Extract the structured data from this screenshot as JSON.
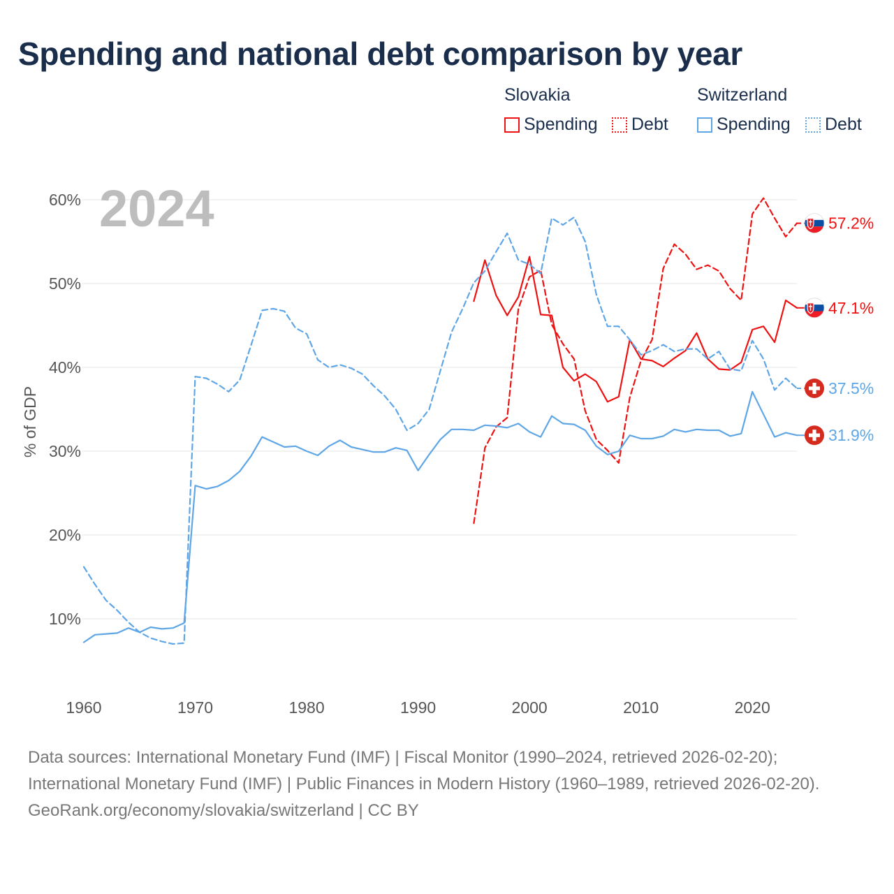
{
  "title": "Spending and national debt comparison by year",
  "legend": {
    "slovakia": {
      "name": "Slovakia",
      "spending": "Spending",
      "debt": "Debt"
    },
    "switzerland": {
      "name": "Switzerland",
      "spending": "Spending",
      "debt": "Debt"
    }
  },
  "footer": {
    "sources": "Data sources: International Monetary Fund (IMF) | Fiscal Monitor (1990–2024, retrieved 2026-02-20); International Monetary Fund (IMF) | Public Finances in Modern History (1960–1989, retrieved 2026-02-20).",
    "attribution": "GeoRank.org/economy/slovakia/switzerland | CC BY"
  },
  "colors": {
    "slovakia": "#ee1111",
    "switzerland": "#5ea6e6"
  },
  "chart_data": {
    "type": "line",
    "title": "Spending and national debt comparison by year",
    "year_label": "2024",
    "xlabel": "",
    "ylabel": "% of GDP",
    "xlim": [
      1960,
      2024
    ],
    "ylim": [
      3,
      63
    ],
    "x_ticks": [
      1960,
      1970,
      1980,
      1990,
      2000,
      2010,
      2020
    ],
    "y_ticks": [
      10,
      20,
      30,
      40,
      50,
      60
    ],
    "y_tick_labels": [
      "10%",
      "20%",
      "30%",
      "40%",
      "50%",
      "60%"
    ],
    "series": [
      {
        "name": "Slovakia Spending",
        "country": "slovakia",
        "style": "solid",
        "color": "#ee1111",
        "start": 1995,
        "values": [
          47.9,
          52.8,
          48.6,
          46.2,
          48.4,
          53.2,
          46.3,
          46.2,
          40.0,
          38.4,
          39.2,
          38.3,
          35.9,
          36.5,
          43.3,
          41.0,
          40.8,
          40.1,
          41.1,
          42.0,
          44.1,
          41.0,
          39.8,
          39.7,
          40.6,
          44.5,
          44.9,
          43.0,
          48.0,
          47.1
        ],
        "end_label": "47.1%"
      },
      {
        "name": "Slovakia Debt",
        "country": "slovakia",
        "style": "dashed",
        "color": "#ee1111",
        "start": 1995,
        "values": [
          21.4,
          30.4,
          32.9,
          34.0,
          47.0,
          50.8,
          51.6,
          45.1,
          42.8,
          41.0,
          34.8,
          31.4,
          30.1,
          28.6,
          36.4,
          40.8,
          43.3,
          51.8,
          54.7,
          53.5,
          51.7,
          52.2,
          51.5,
          49.4,
          48.0,
          58.3,
          60.2,
          57.8,
          55.6,
          57.2
        ],
        "end_label": "57.2%"
      },
      {
        "name": "Switzerland Spending",
        "country": "switzerland",
        "style": "solid",
        "color": "#5ea6e6",
        "start": 1960,
        "values": [
          7.2,
          8.1,
          8.2,
          8.3,
          8.9,
          8.4,
          9.0,
          8.8,
          8.9,
          9.5,
          25.9,
          25.5,
          25.8,
          26.5,
          27.6,
          29.4,
          31.7,
          31.1,
          30.5,
          30.6,
          30.0,
          29.5,
          30.6,
          31.3,
          30.5,
          30.2,
          29.9,
          29.9,
          30.4,
          30.1,
          27.7,
          29.6,
          31.4,
          32.6,
          32.6,
          32.5,
          33.1,
          33.0,
          32.8,
          33.3,
          32.3,
          31.7,
          34.2,
          33.3,
          33.2,
          32.5,
          30.6,
          29.6,
          30.0,
          31.9,
          31.5,
          31.5,
          31.8,
          32.6,
          32.3,
          32.6,
          32.5,
          32.5,
          31.8,
          32.1,
          37.1,
          34.4,
          31.7,
          32.2,
          31.9
        ],
        "end_label": "31.9%"
      },
      {
        "name": "Switzerland Debt",
        "country": "switzerland",
        "style": "dashed",
        "color": "#5ea6e6",
        "start": 1960,
        "values": [
          16.2,
          14.1,
          12.2,
          11.0,
          9.6,
          8.4,
          7.7,
          7.3,
          7.0,
          7.1,
          38.9,
          38.7,
          38.0,
          37.1,
          38.5,
          42.6,
          46.8,
          47.0,
          46.7,
          44.7,
          44.0,
          40.9,
          40.0,
          40.3,
          39.9,
          39.2,
          37.8,
          36.6,
          35.0,
          32.5,
          33.3,
          35.0,
          39.6,
          44.2,
          47.0,
          50.1,
          51.5,
          53.8,
          56.0,
          52.8,
          52.3,
          51.2,
          57.8,
          57.0,
          57.9,
          55.0,
          48.7,
          44.9,
          44.9,
          43.3,
          41.5,
          42.0,
          42.7,
          41.9,
          42.2,
          42.2,
          41.0,
          41.9,
          39.8,
          39.6,
          43.2,
          41.0,
          37.3,
          38.7,
          37.5
        ],
        "end_label": "37.5%"
      }
    ]
  }
}
